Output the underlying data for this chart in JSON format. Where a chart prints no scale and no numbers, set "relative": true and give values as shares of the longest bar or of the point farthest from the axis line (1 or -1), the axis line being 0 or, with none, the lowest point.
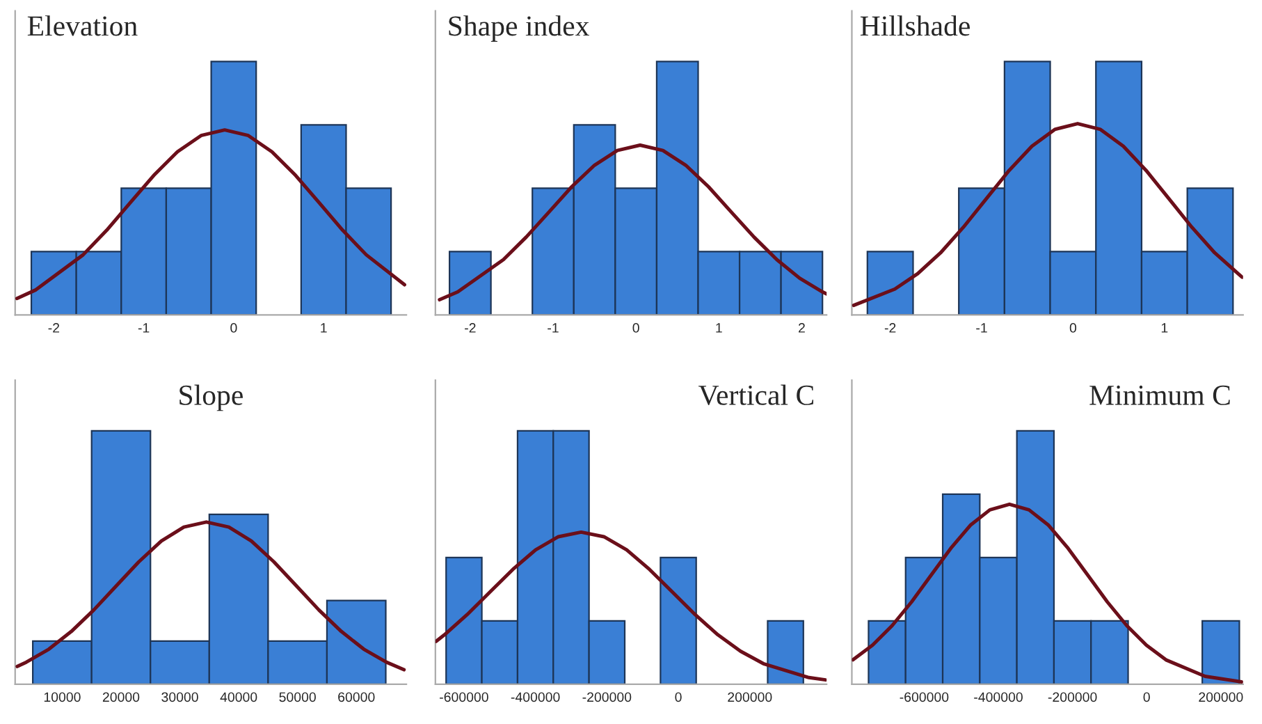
{
  "chart_data": [
    {
      "type": "histogram",
      "title": "Elevation",
      "relative": true,
      "xlim": [
        -2.43,
        1.92
      ],
      "xticks": [
        -2,
        -1,
        0,
        1
      ],
      "series": [
        {
          "type": "histogram",
          "color": "#3a7fd5",
          "bins": [
            -2.25,
            -1.75,
            -1.25,
            -0.75,
            -0.25,
            0.25,
            0.75,
            1.25,
            1.75
          ],
          "values": [
            0.25,
            0.25,
            0.5,
            0.5,
            1,
            0,
            0.75,
            0.5
          ]
        },
        {
          "type": "line",
          "color": "#6b0f1a",
          "x": [
            -2.41,
            -2.2,
            -1.675,
            -1.4125,
            -1.15,
            -0.8875,
            -0.625,
            -0.3625,
            -0.1,
            0.1625,
            0.425,
            0.6875,
            0.95,
            1.2125,
            1.475,
            1.9
          ],
          "values": [
            0.065,
            0.099,
            0.237,
            0.334,
            0.443,
            0.551,
            0.644,
            0.708,
            0.73,
            0.708,
            0.644,
            0.551,
            0.443,
            0.334,
            0.237,
            0.119
          ]
        }
      ]
    },
    {
      "type": "histogram",
      "title": "Shape index",
      "relative": true,
      "xlim": [
        -2.42,
        2.3
      ],
      "xticks": [
        -2,
        -1,
        0,
        1,
        2
      ],
      "series": [
        {
          "type": "histogram",
          "color": "#3a7fd5",
          "bins": [
            -2.25,
            -1.75,
            -1.25,
            -0.75,
            -0.25,
            0.25,
            0.75,
            1.25,
            1.75,
            2.25
          ],
          "values": [
            0.25,
            0,
            0.5,
            0.75,
            0.5,
            1,
            0.25,
            0.25,
            0.25
          ]
        },
        {
          "type": "line",
          "color": "#6b0f1a",
          "x": [
            -2.37,
            -2.15,
            -1.6,
            -1.325,
            -1.05,
            -0.775,
            -0.5,
            -0.225,
            0.05,
            0.325,
            0.6,
            0.875,
            1.15,
            1.425,
            1.7,
            1.975,
            2.25,
            2.3
          ],
          "values": [
            0.06,
            0.091,
            0.218,
            0.307,
            0.406,
            0.506,
            0.591,
            0.649,
            0.67,
            0.649,
            0.591,
            0.506,
            0.406,
            0.307,
            0.218,
            0.145,
            0.091,
            0.083
          ]
        }
      ]
    },
    {
      "type": "histogram",
      "title": "Hillshade",
      "relative": true,
      "xlim": [
        -2.42,
        1.86
      ],
      "xticks": [
        -2,
        -1,
        0,
        1
      ],
      "series": [
        {
          "type": "histogram",
          "color": "#3a7fd5",
          "bins": [
            -2.25,
            -1.75,
            -1.25,
            -0.75,
            -0.25,
            0.25,
            0.75,
            1.25,
            1.75
          ],
          "values": [
            0.25,
            0,
            0.5,
            1,
            0.25,
            1,
            0.25,
            0.5
          ]
        },
        {
          "type": "line",
          "color": "#6b0f1a",
          "x": [
            -2.4,
            -1.95,
            -1.7,
            -1.45,
            -1.2,
            -0.95,
            -0.7,
            -0.45,
            -0.2,
            0.05,
            0.3,
            0.55,
            0.8,
            1.05,
            1.3,
            1.55,
            1.85
          ],
          "values": [
            0.038,
            0.102,
            0.163,
            0.245,
            0.346,
            0.458,
            0.57,
            0.666,
            0.732,
            0.755,
            0.732,
            0.666,
            0.57,
            0.458,
            0.346,
            0.245,
            0.149
          ]
        }
      ]
    },
    {
      "type": "histogram",
      "title": "Slope",
      "relative": true,
      "xlim": [
        2000,
        68500
      ],
      "xticks": [
        10000,
        20000,
        30000,
        40000,
        50000,
        60000
      ],
      "series": [
        {
          "type": "histogram",
          "color": "#3a7fd5",
          "bins": [
            5000,
            15000,
            25000,
            35000,
            45000,
            55000,
            65000
          ],
          "values": [
            0.17,
            1,
            0.17,
            0.67,
            0.17,
            0.33
          ]
        },
        {
          "type": "line",
          "color": "#6b0f1a",
          "x": [
            2370,
            3900,
            7725,
            11550,
            15375,
            19200,
            23025,
            26850,
            30675,
            34500,
            38325,
            42150,
            45975,
            49800,
            53625,
            57450,
            61275,
            65100,
            68100
          ],
          "values": [
            0.07,
            0.087,
            0.138,
            0.208,
            0.293,
            0.388,
            0.483,
            0.565,
            0.62,
            0.64,
            0.62,
            0.565,
            0.483,
            0.388,
            0.293,
            0.208,
            0.138,
            0.087,
            0.057
          ]
        }
      ]
    },
    {
      "type": "histogram",
      "title": "Vertical C",
      "relative": true,
      "xlim": [
        -680000,
        415000
      ],
      "xticks": [
        -600000,
        -400000,
        -200000,
        0,
        200000
      ],
      "series": [
        {
          "type": "histogram",
          "color": "#3a7fd5",
          "bins": [
            -650000,
            -550000,
            -450000,
            -350000,
            -250000,
            -150000,
            -50000,
            50000,
            150000,
            250000,
            350000
          ],
          "values": [
            0.5,
            0.25,
            1,
            1,
            0.25,
            0,
            0.5,
            0,
            0,
            0.25
          ]
        },
        {
          "type": "line",
          "color": "#6b0f1a",
          "x": [
            -678000,
            -654500,
            -590750,
            -527000,
            -463250,
            -399500,
            -335750,
            -272000,
            -208250,
            -144500,
            -80750,
            -17000,
            46750,
            110500,
            174250,
            238000,
            365500,
            412000
          ],
          "values": [
            0.169,
            0.195,
            0.275,
            0.364,
            0.453,
            0.53,
            0.582,
            0.6,
            0.582,
            0.53,
            0.453,
            0.364,
            0.275,
            0.195,
            0.13,
            0.081,
            0.026,
            0.017
          ]
        }
      ]
    },
    {
      "type": "histogram",
      "title": "Minimum C",
      "relative": true,
      "xlim": [
        -795000,
        260000
      ],
      "xticks": [
        -600000,
        -400000,
        -200000,
        0,
        200000
      ],
      "series": [
        {
          "type": "histogram",
          "color": "#3a7fd5",
          "bins": [
            -750000,
            -650000,
            -550000,
            -450000,
            -350000,
            -250000,
            -150000,
            -50000,
            50000,
            150000,
            250000
          ],
          "values": [
            0.25,
            0.5,
            0.75,
            0.5,
            1,
            0.25,
            0.25,
            0,
            0,
            0.25
          ]
        },
        {
          "type": "line",
          "color": "#6b0f1a",
          "x": [
            -792000,
            -739250,
            -686500,
            -633750,
            -581000,
            -528250,
            -475500,
            -422750,
            -370000,
            -317250,
            -264500,
            -211750,
            -159000,
            -106250,
            -53500,
            -750,
            52000,
            157500,
            256000
          ],
          "values": [
            0.096,
            0.154,
            0.231,
            0.325,
            0.431,
            0.536,
            0.627,
            0.688,
            0.71,
            0.688,
            0.627,
            0.536,
            0.431,
            0.325,
            0.231,
            0.154,
            0.096,
            0.031,
            0.009
          ]
        }
      ]
    }
  ]
}
